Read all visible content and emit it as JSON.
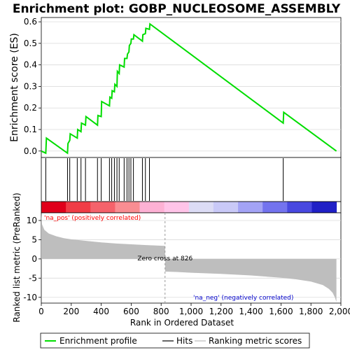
{
  "chart_data": {
    "type": "line",
    "title": "Enrichment plot: GOBP_NUCLEOSOME_ASSEMBLY",
    "es_panel": {
      "ylabel": "Enrichment score (ES)",
      "ylim": [
        -0.03,
        0.62
      ],
      "yticks": [
        "0.0",
        "0.1",
        "0.2",
        "0.3",
        "0.4",
        "0.5",
        "0.6"
      ],
      "ytick_values": [
        0.0,
        0.1,
        0.2,
        0.3,
        0.4,
        0.5,
        0.6
      ],
      "x": [
        0,
        30,
        34,
        175,
        178,
        190,
        193,
        240,
        243,
        265,
        268,
        295,
        298,
        375,
        378,
        400,
        403,
        455,
        458,
        470,
        473,
        488,
        491,
        505,
        508,
        520,
        523,
        553,
        556,
        572,
        575,
        585,
        588,
        598,
        601,
        615,
        618,
        675,
        678,
        695,
        698,
        722,
        725,
        1615,
        1618,
        1970
      ],
      "y": [
        0.0,
        -0.01,
        0.06,
        -0.01,
        0.035,
        0.05,
        0.08,
        0.06,
        0.1,
        0.09,
        0.13,
        0.12,
        0.16,
        0.12,
        0.165,
        0.16,
        0.23,
        0.21,
        0.25,
        0.245,
        0.28,
        0.275,
        0.31,
        0.3,
        0.37,
        0.36,
        0.4,
        0.39,
        0.43,
        0.43,
        0.45,
        0.46,
        0.49,
        0.5,
        0.52,
        0.52,
        0.54,
        0.51,
        0.54,
        0.545,
        0.57,
        0.565,
        0.59,
        0.13,
        0.18,
        0.0
      ]
    },
    "hits": [
      30,
      175,
      190,
      240,
      265,
      295,
      375,
      400,
      455,
      470,
      488,
      505,
      520,
      553,
      572,
      585,
      598,
      615,
      675,
      695,
      722,
      1615
    ],
    "metric_panel": {
      "ylabel": "Ranked list metric (PreRanked)",
      "xlabel": "Rank in Ordered Dataset",
      "ylim": [
        -11.5,
        12
      ],
      "yticks": [
        "10",
        "5",
        "0",
        "-5",
        "-10"
      ],
      "ytick_values": [
        10,
        5,
        0,
        -5,
        -10
      ],
      "xlim": [
        0,
        2000
      ],
      "xticks": [
        "0",
        "200",
        "400",
        "600",
        "800",
        "1,000",
        "1,200",
        "1,400",
        "1,600",
        "1,800",
        "2,000"
      ],
      "xtick_values": [
        0,
        200,
        400,
        600,
        800,
        1000,
        1200,
        1400,
        1600,
        1800,
        2000
      ],
      "positive_label": "'na_pos' (positively correlated)",
      "negative_label": "'na_neg' (negatively correlated)",
      "zero_cross_label": "Zero cross at 826",
      "zero_cross": 826,
      "n_total": 1970,
      "profile_x": [
        0,
        5,
        20,
        50,
        100,
        150,
        200,
        300,
        400,
        500,
        600,
        700,
        826,
        827,
        900,
        1000,
        1200,
        1400,
        1600,
        1700,
        1800,
        1880,
        1920,
        1945,
        1960,
        1970
      ],
      "profile_y": [
        11.8,
        9.0,
        7.6,
        6.6,
        5.9,
        5.4,
        5.1,
        4.7,
        4.3,
        4.0,
        3.8,
        3.6,
        3.4,
        -3.3,
        -3.4,
        -3.6,
        -3.9,
        -4.3,
        -4.9,
        -5.3,
        -5.9,
        -6.8,
        -7.8,
        -8.8,
        -10.0,
        -11.2
      ]
    },
    "color_bar": [
      "#e0001b",
      "#f03c46",
      "#f5626b",
      "#f98d92",
      "#fdb1d4",
      "#ffc4e8",
      "#dcdcf5",
      "#c9c9f7",
      "#a3a3f5",
      "#7373ee",
      "#4848e0",
      "#2020c6"
    ],
    "legend": [
      "Enrichment profile",
      "Hits",
      "Ranking metric scores"
    ],
    "legend_placement": "bottom",
    "colors": {
      "es_line": "#00dd00",
      "hits": "#000000",
      "metric_fill": "#bebebe",
      "positive_text": "#ff0000",
      "negative_text": "#0000cc",
      "grid": "#dcdcdc"
    }
  }
}
